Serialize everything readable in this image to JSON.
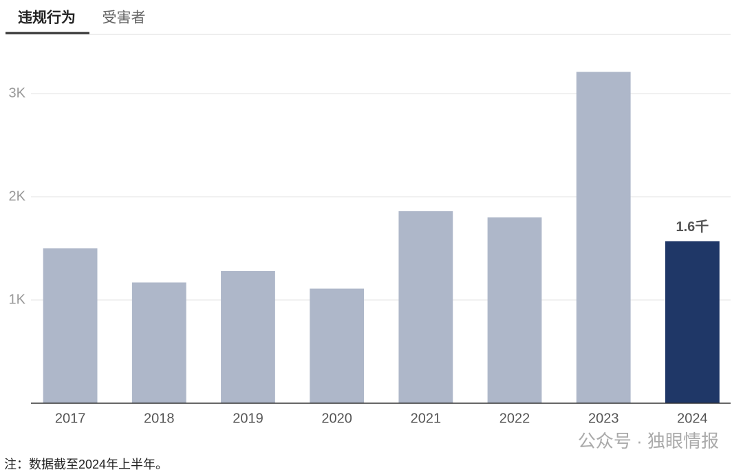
{
  "tabs": [
    "违规行为",
    "受害者"
  ],
  "chart_data": {
    "type": "bar",
    "categories": [
      "2017",
      "2018",
      "2019",
      "2020",
      "2021",
      "2022",
      "2023",
      "2024"
    ],
    "values": [
      1500,
      1170,
      1280,
      1110,
      1860,
      1800,
      3210,
      1570
    ],
    "value_labels": [
      null,
      null,
      null,
      null,
      null,
      null,
      null,
      "1.6千"
    ],
    "colors": [
      "#aeb7c9",
      "#aeb7c9",
      "#aeb7c9",
      "#aeb7c9",
      "#aeb7c9",
      "#aeb7c9",
      "#aeb7c9",
      "#1f3767"
    ],
    "ylim": [
      0,
      3500
    ],
    "yticks": [
      {
        "value": 1000,
        "label": "1K"
      },
      {
        "value": 2000,
        "label": "2K"
      },
      {
        "value": 3000,
        "label": "3K"
      }
    ],
    "grid": true
  },
  "footnote": "注：数据截至2024年上半年。",
  "watermark": "公众号 · 独眼情报"
}
